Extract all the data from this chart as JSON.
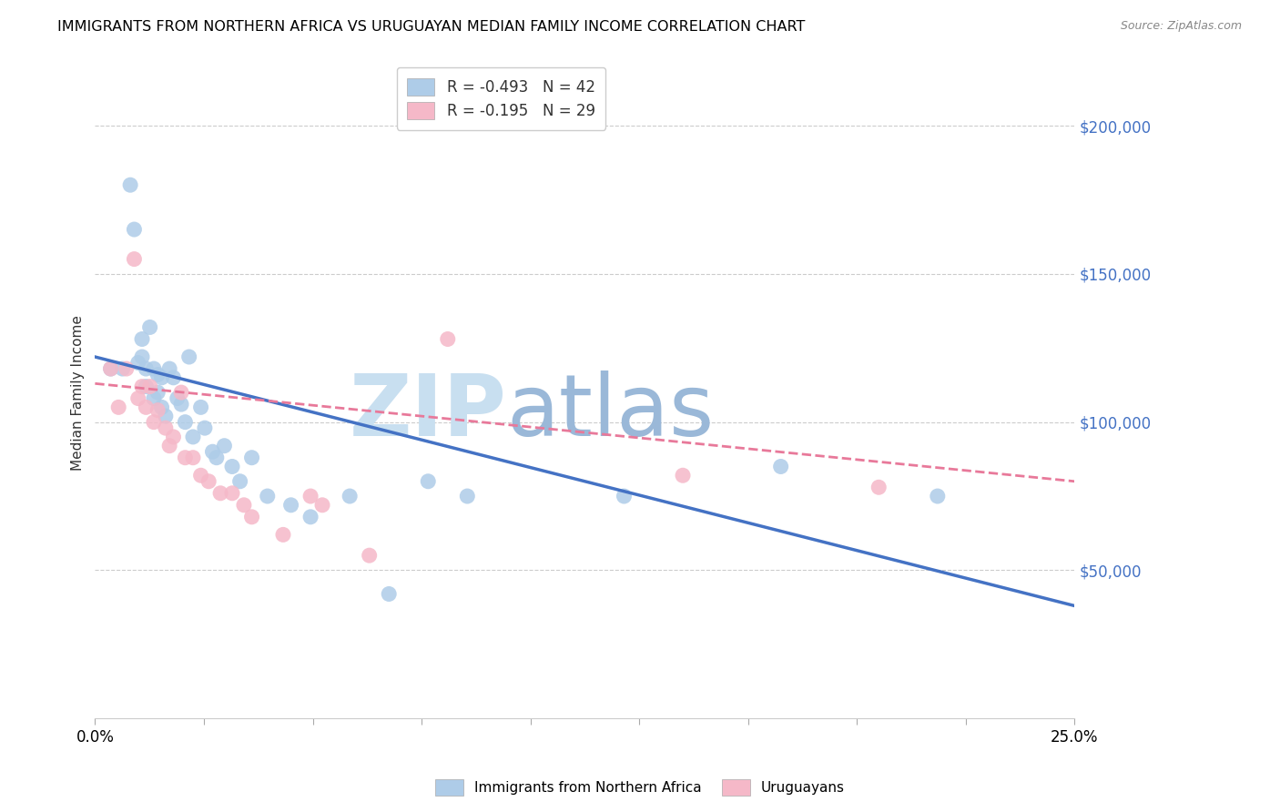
{
  "title": "IMMIGRANTS FROM NORTHERN AFRICA VS URUGUAYAN MEDIAN FAMILY INCOME CORRELATION CHART",
  "source": "Source: ZipAtlas.com",
  "ylabel": "Median Family Income",
  "right_yticks": [
    0,
    50000,
    100000,
    150000,
    200000
  ],
  "right_yticklabels": [
    "",
    "$50,000",
    "$100,000",
    "$150,000",
    "$200,000"
  ],
  "xlim": [
    0.0,
    0.25
  ],
  "ylim": [
    0,
    220000
  ],
  "watermark_zip": "ZIP",
  "watermark_atlas": "atlas",
  "legend1_label": "R = -0.493   N = 42",
  "legend2_label": "R = -0.195   N = 29",
  "series1_color": "#aecce8",
  "series2_color": "#f5b8c8",
  "line1_color": "#4472c4",
  "line2_color": "#e8799a",
  "blue_scatter_x": [
    0.004,
    0.007,
    0.009,
    0.01,
    0.011,
    0.012,
    0.012,
    0.013,
    0.013,
    0.014,
    0.015,
    0.015,
    0.016,
    0.016,
    0.017,
    0.017,
    0.018,
    0.019,
    0.02,
    0.021,
    0.022,
    0.023,
    0.024,
    0.025,
    0.027,
    0.028,
    0.03,
    0.031,
    0.033,
    0.035,
    0.037,
    0.04,
    0.044,
    0.05,
    0.055,
    0.065,
    0.075,
    0.085,
    0.095,
    0.135,
    0.175,
    0.215
  ],
  "blue_scatter_y": [
    118000,
    118000,
    180000,
    165000,
    120000,
    122000,
    128000,
    112000,
    118000,
    132000,
    108000,
    118000,
    110000,
    116000,
    105000,
    115000,
    102000,
    118000,
    115000,
    108000,
    106000,
    100000,
    122000,
    95000,
    105000,
    98000,
    90000,
    88000,
    92000,
    85000,
    80000,
    88000,
    75000,
    72000,
    68000,
    75000,
    42000,
    80000,
    75000,
    75000,
    85000,
    75000
  ],
  "pink_scatter_x": [
    0.004,
    0.006,
    0.008,
    0.01,
    0.011,
    0.012,
    0.013,
    0.014,
    0.015,
    0.016,
    0.018,
    0.019,
    0.02,
    0.022,
    0.023,
    0.025,
    0.027,
    0.029,
    0.032,
    0.035,
    0.038,
    0.04,
    0.048,
    0.055,
    0.058,
    0.07,
    0.09,
    0.15,
    0.2
  ],
  "pink_scatter_y": [
    118000,
    105000,
    118000,
    155000,
    108000,
    112000,
    105000,
    112000,
    100000,
    104000,
    98000,
    92000,
    95000,
    110000,
    88000,
    88000,
    82000,
    80000,
    76000,
    76000,
    72000,
    68000,
    62000,
    75000,
    72000,
    55000,
    128000,
    82000,
    78000
  ],
  "blue_line_x0": 0.0,
  "blue_line_y0": 122000,
  "blue_line_x1": 0.25,
  "blue_line_y1": 38000,
  "pink_line_x0": 0.0,
  "pink_line_y0": 113000,
  "pink_line_x1": 0.25,
  "pink_line_y1": 80000
}
